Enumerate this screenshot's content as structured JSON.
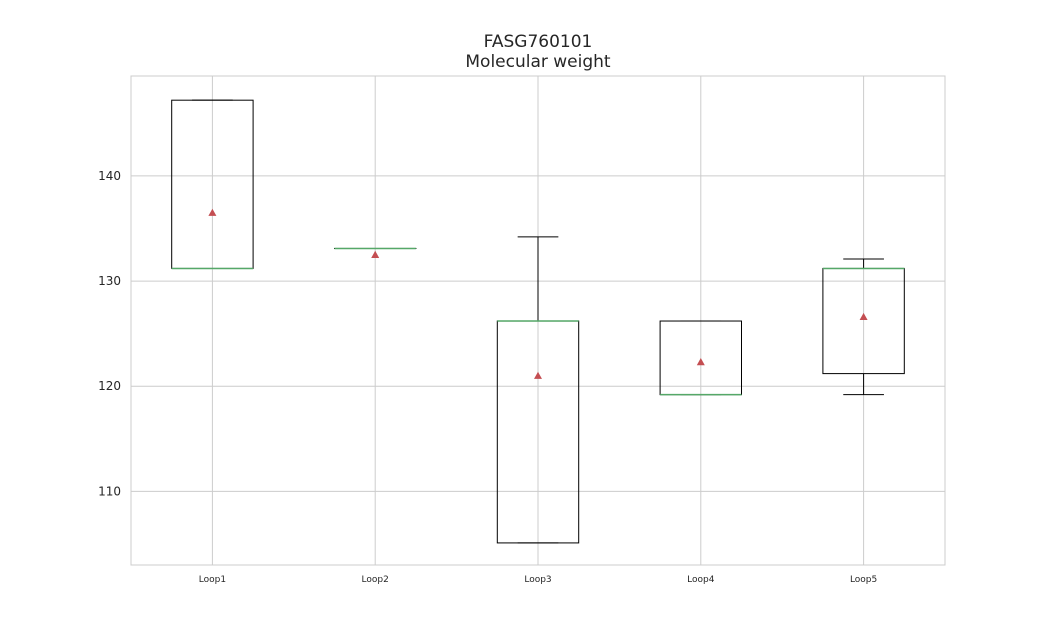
{
  "chart_data": {
    "type": "box",
    "title": "FASG760101",
    "subtitle": "Molecular weight",
    "xlabel": "",
    "ylabel": "",
    "ylim": [
      103,
      149.5
    ],
    "yticks": [
      110,
      120,
      130,
      140
    ],
    "grid": true,
    "categories": [
      "Loop1",
      "Loop2",
      "Loop3",
      "Loop4",
      "Loop5"
    ],
    "boxes": [
      {
        "whisker_low": 131.2,
        "q1": 131.2,
        "median": 131.2,
        "q3": 147.2,
        "whisker_high": 147.2,
        "mean": 136.5
      },
      {
        "whisker_low": 133.1,
        "q1": 133.1,
        "median": 133.1,
        "q3": 133.1,
        "whisker_high": 133.1,
        "mean": 132.5
      },
      {
        "whisker_low": 105.1,
        "q1": 105.1,
        "median": 126.2,
        "q3": 126.2,
        "whisker_high": 134.2,
        "mean": 121.0
      },
      {
        "whisker_low": 119.2,
        "q1": 119.2,
        "median": 119.2,
        "q3": 126.2,
        "whisker_high": 126.2,
        "mean": 122.3
      },
      {
        "whisker_low": 119.2,
        "q1": 121.2,
        "median": 131.2,
        "q3": 131.2,
        "whisker_high": 132.1,
        "mean": 126.6
      }
    ],
    "colors": {
      "box": "#000000",
      "median": "#55a868",
      "mean": "#c44e52",
      "grid": "#cccccc",
      "axes_edge": "#cccccc",
      "text": "#262626"
    }
  }
}
